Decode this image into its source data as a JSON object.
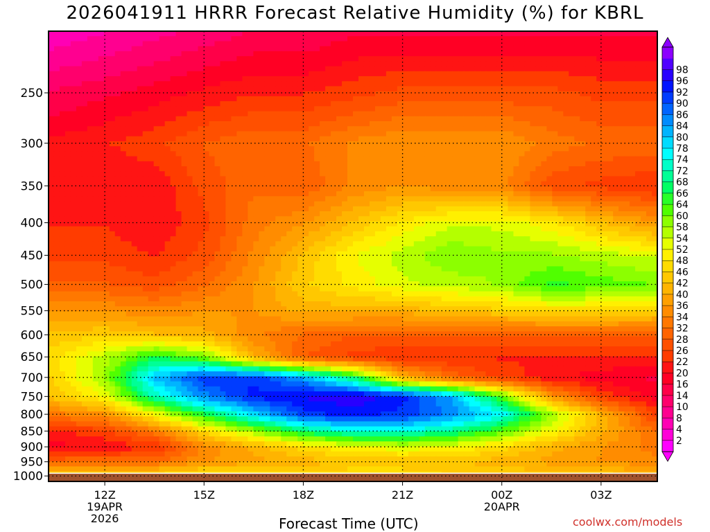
{
  "chart_data": {
    "type": "heatmap",
    "title": "2026041911 HRRR Forecast Relative Humidity (%) for KBRL",
    "xlabel": "Forecast Time (UTC)",
    "ylabel": "",
    "credit": "coolwx.com/models",
    "y_axis": {
      "scale": "log-pressure",
      "ylim": [
        1020,
        200
      ],
      "ticks": [
        250,
        300,
        350,
        400,
        450,
        500,
        550,
        600,
        650,
        700,
        750,
        800,
        850,
        900,
        950,
        1000
      ],
      "tick_labels": [
        "250",
        "300",
        "350",
        "400",
        "450",
        "500",
        "550",
        "600",
        "650",
        "700",
        "750",
        "800",
        "850",
        "900",
        "950",
        "1000"
      ]
    },
    "x_axis": {
      "xlim_hours_from_12Z": [
        -1.7,
        16.7
      ],
      "ticks": [
        {
          "hour": 0,
          "label": "12Z",
          "sub1": "19APR",
          "sub2": "2026"
        },
        {
          "hour": 3,
          "label": "15Z",
          "sub1": "",
          "sub2": ""
        },
        {
          "hour": 6,
          "label": "18Z",
          "sub1": "",
          "sub2": ""
        },
        {
          "hour": 9,
          "label": "21Z",
          "sub1": "",
          "sub2": ""
        },
        {
          "hour": 12,
          "label": "00Z",
          "sub1": "20APR",
          "sub2": ""
        },
        {
          "hour": 15,
          "label": "03Z",
          "sub1": "",
          "sub2": ""
        }
      ]
    },
    "grid": true,
    "surface_pressure": 990,
    "colorbar": {
      "labels": [
        "2",
        "4",
        "8",
        "10",
        "14",
        "16",
        "20",
        "22",
        "26",
        "28",
        "32",
        "34",
        "36",
        "40",
        "42",
        "46",
        "48",
        "52",
        "54",
        "58",
        "60",
        "64",
        "66",
        "68",
        "72",
        "74",
        "78",
        "80",
        "84",
        "86",
        "90",
        "92",
        "96",
        "98"
      ],
      "colors": [
        "#ff00ff",
        "#ff00d8",
        "#ff00b4",
        "#ff0090",
        "#ff006c",
        "#ff0048",
        "#ff0024",
        "#ff1414",
        "#ff3c00",
        "#ff5000",
        "#ff6400",
        "#ff7800",
        "#ff8c00",
        "#ffa000",
        "#ffb400",
        "#ffc800",
        "#ffdc00",
        "#fff000",
        "#e6ff00",
        "#b4ff00",
        "#8cff00",
        "#50ff00",
        "#28ff28",
        "#00ff64",
        "#00ff96",
        "#00ffc8",
        "#00ffff",
        "#00dcff",
        "#00b4ff",
        "#008cff",
        "#0064ff",
        "#003cff",
        "#0014ff",
        "#2800ff",
        "#5000ff",
        "#8c00ff"
      ]
    },
    "rh_profiles": [
      {
        "hour": -1.7,
        "p": [
          200,
          250,
          300,
          350,
          400,
          450,
          500,
          550,
          600,
          650,
          700,
          750,
          800,
          850,
          900,
          950,
          990
        ],
        "rh": [
          6,
          14,
          20,
          20,
          22,
          24,
          28,
          36,
          42,
          46,
          44,
          42,
          32,
          22,
          18,
          30,
          42
        ]
      },
      {
        "hour": 0,
        "p": [
          200,
          250,
          300,
          350,
          400,
          450,
          500,
          550,
          600,
          650,
          700,
          750,
          800,
          850,
          900,
          950,
          990
        ],
        "rh": [
          8,
          16,
          22,
          20,
          22,
          24,
          28,
          36,
          44,
          54,
          56,
          50,
          36,
          24,
          20,
          30,
          44
        ]
      },
      {
        "hour": 1.5,
        "p": [
          200,
          250,
          300,
          350,
          400,
          450,
          500,
          550,
          600,
          650,
          700,
          750,
          800,
          850,
          900,
          950,
          990
        ],
        "rh": [
          10,
          18,
          24,
          20,
          20,
          22,
          26,
          34,
          42,
          64,
          78,
          70,
          50,
          32,
          22,
          30,
          44
        ]
      },
      {
        "hour": 3,
        "p": [
          200,
          250,
          300,
          350,
          400,
          450,
          500,
          550,
          600,
          650,
          700,
          750,
          800,
          850,
          900,
          950,
          990
        ],
        "rh": [
          12,
          20,
          28,
          26,
          24,
          26,
          30,
          36,
          40,
          58,
          88,
          82,
          64,
          46,
          34,
          36,
          46
        ]
      },
      {
        "hour": 4.5,
        "p": [
          200,
          250,
          300,
          350,
          400,
          450,
          500,
          550,
          600,
          650,
          700,
          750,
          800,
          850,
          900,
          950,
          990
        ],
        "rh": [
          14,
          22,
          30,
          30,
          32,
          34,
          36,
          36,
          34,
          40,
          88,
          90,
          76,
          56,
          40,
          38,
          46
        ]
      },
      {
        "hour": 6,
        "p": [
          200,
          250,
          300,
          350,
          400,
          450,
          500,
          550,
          600,
          650,
          700,
          750,
          800,
          850,
          900,
          950,
          990
        ],
        "rh": [
          14,
          22,
          30,
          28,
          36,
          42,
          44,
          40,
          30,
          28,
          80,
          92,
          88,
          66,
          46,
          40,
          46
        ]
      },
      {
        "hour": 7.5,
        "p": [
          200,
          250,
          300,
          350,
          400,
          450,
          500,
          550,
          600,
          650,
          700,
          750,
          800,
          850,
          900,
          950,
          990
        ],
        "rh": [
          16,
          24,
          34,
          34,
          42,
          50,
          48,
          40,
          28,
          24,
          66,
          94,
          90,
          72,
          50,
          42,
          46
        ]
      },
      {
        "hour": 9,
        "p": [
          200,
          250,
          300,
          350,
          400,
          450,
          500,
          550,
          600,
          650,
          700,
          750,
          800,
          850,
          900,
          950,
          990
        ],
        "rh": [
          16,
          26,
          36,
          36,
          48,
          54,
          52,
          40,
          28,
          22,
          40,
          90,
          88,
          72,
          52,
          42,
          46
        ]
      },
      {
        "hour": 10.5,
        "p": [
          200,
          250,
          300,
          350,
          400,
          450,
          500,
          550,
          600,
          650,
          700,
          750,
          800,
          850,
          900,
          950,
          990
        ],
        "rh": [
          16,
          26,
          36,
          34,
          52,
          58,
          54,
          42,
          28,
          22,
          30,
          80,
          82,
          68,
          50,
          42,
          44
        ]
      },
      {
        "hour": 12,
        "p": [
          200,
          250,
          300,
          350,
          400,
          450,
          500,
          550,
          600,
          650,
          700,
          750,
          800,
          850,
          900,
          950,
          990
        ],
        "rh": [
          16,
          26,
          36,
          34,
          52,
          56,
          56,
          44,
          28,
          22,
          24,
          60,
          74,
          60,
          46,
          40,
          44
        ]
      },
      {
        "hour": 13.5,
        "p": [
          200,
          250,
          300,
          350,
          400,
          450,
          500,
          550,
          600,
          650,
          700,
          750,
          800,
          850,
          900,
          950,
          990
        ],
        "rh": [
          16,
          26,
          32,
          26,
          48,
          56,
          62,
          46,
          28,
          22,
          20,
          36,
          56,
          50,
          40,
          38,
          42
        ]
      },
      {
        "hour": 15,
        "p": [
          200,
          250,
          300,
          350,
          400,
          450,
          500,
          550,
          600,
          650,
          700,
          750,
          800,
          850,
          900,
          950,
          990
        ],
        "rh": [
          16,
          24,
          30,
          24,
          42,
          54,
          60,
          46,
          28,
          22,
          18,
          24,
          40,
          40,
          36,
          36,
          42
        ]
      },
      {
        "hour": 16.7,
        "p": [
          200,
          250,
          300,
          350,
          400,
          450,
          500,
          550,
          600,
          650,
          700,
          750,
          800,
          850,
          900,
          950,
          990
        ],
        "rh": [
          16,
          24,
          30,
          22,
          36,
          52,
          58,
          44,
          28,
          22,
          16,
          18,
          24,
          30,
          32,
          34,
          40
        ]
      }
    ]
  }
}
